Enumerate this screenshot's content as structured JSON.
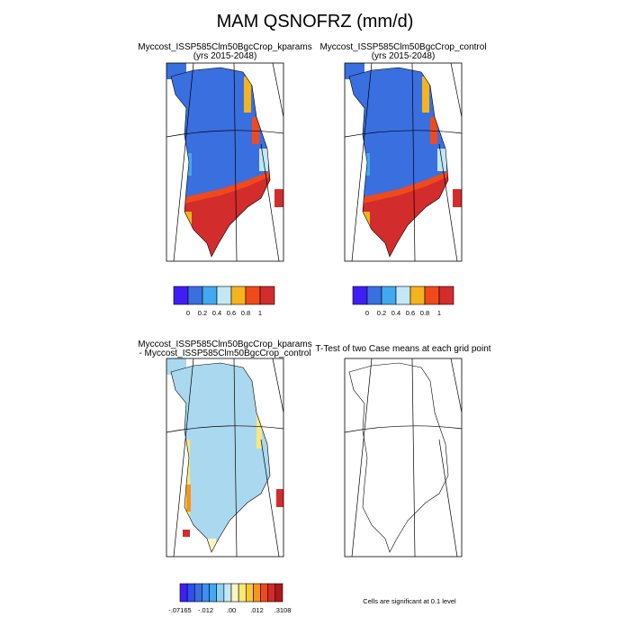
{
  "title": "MAM QSNOFRZ (mm/d)",
  "panels": [
    {
      "title": [
        "Myccost_ISSP585Clm50BgcCrop_kparams",
        "(yrs 2015-2048)"
      ]
    },
    {
      "title": [
        "Myccost_ISSP585Clm50BgcCrop_control",
        "(yrs 2015-2048)"
      ]
    },
    {
      "title": [
        "Myccost_ISSP585Clm50BgcCrop_kparams",
        "- Myccost_ISSP585Clm50BgcCrop_control"
      ]
    },
    {
      "title": [
        "T-Test of two Case means at each grid point"
      ]
    }
  ],
  "colorbars": [
    {
      "colors": [
        "#3f1ef5",
        "#3a6fe0",
        "#41a9f0",
        "#c3e7f5",
        "#f5b41c",
        "#f04a1c",
        "#d22c2c"
      ],
      "labels": [
        0,
        0.2,
        0.4,
        0.6,
        0.8,
        1
      ]
    },
    {
      "colors": [
        "#3f1ef5",
        "#3a6fe0",
        "#41a9f0",
        "#c3e7f5",
        "#f5b41c",
        "#f04a1c",
        "#d22c2c"
      ],
      "labels": [
        0,
        0.2,
        0.4,
        0.6,
        0.8,
        1
      ]
    },
    {
      "colors": [
        "#3f1ef5",
        "#2f4ef0",
        "#3a6fe0",
        "#3f8ff0",
        "#41a9f0",
        "#8fd0f3",
        "#c3e7f5",
        "#fbf5c0",
        "#fbe77a",
        "#f5c83a",
        "#f5961c",
        "#f04a1c",
        "#d22c2c",
        "#b01818"
      ],
      "labels": [
        "-.07165",
        "-.012",
        ".00",
        ".012",
        ".3108"
      ]
    }
  ],
  "note": "Cells are significant at 0.1 level"
}
